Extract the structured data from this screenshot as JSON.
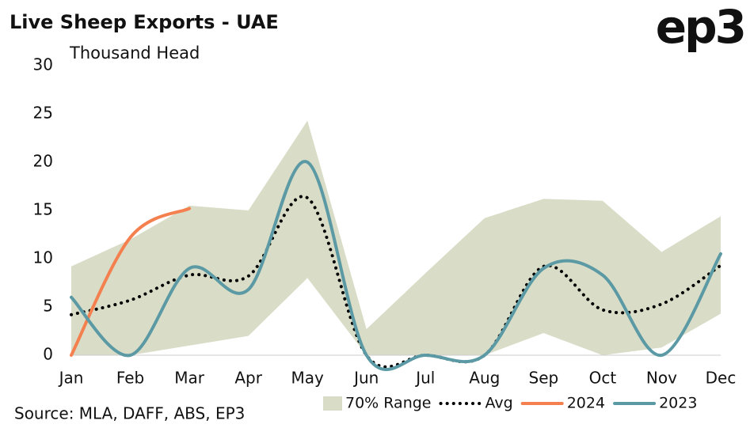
{
  "chart_data": {
    "type": "line",
    "title": "Live Sheep Exports - UAE",
    "logo": "ep3",
    "y_label": "Thousand Head",
    "source": "Source: MLA, DAFF, ABS, EP3",
    "categories": [
      "Jan",
      "Feb",
      "Mar",
      "Apr",
      "May",
      "Jun",
      "Jul",
      "Aug",
      "Sep",
      "Oct",
      "Nov",
      "Dec"
    ],
    "ylim": [
      0,
      30
    ],
    "yticks": [
      0,
      5,
      10,
      15,
      20,
      25,
      30
    ],
    "legend": "bottom",
    "series": [
      {
        "name": "70% Range",
        "kind": "range",
        "color": "#d9dcc6",
        "values": [
          9.2,
          12,
          15.5,
          15,
          24.3,
          2.7,
          8.5,
          14.2,
          16.2,
          16,
          10.7,
          14.4
        ],
        "lower": [
          0,
          0,
          1,
          2,
          8,
          0,
          0,
          0,
          2.3,
          0,
          0.8,
          4.3
        ]
      },
      {
        "name": "Avg",
        "kind": "dotted",
        "color": "#000000",
        "values": [
          4.2,
          5.7,
          8.3,
          8.2,
          16.3,
          0,
          0,
          0,
          9.2,
          4.7,
          5.3,
          9.3
        ]
      },
      {
        "name": "2024",
        "kind": "line",
        "color": "#f5804f",
        "values": [
          0,
          12.2,
          15.2,
          null,
          null,
          null,
          null,
          null,
          null,
          null,
          null,
          null
        ]
      },
      {
        "name": "2023",
        "kind": "line",
        "color": "#5b9aa5",
        "values": [
          6,
          0,
          9,
          6.8,
          20,
          0,
          0,
          0,
          9,
          8.3,
          0,
          10.5
        ]
      }
    ]
  }
}
